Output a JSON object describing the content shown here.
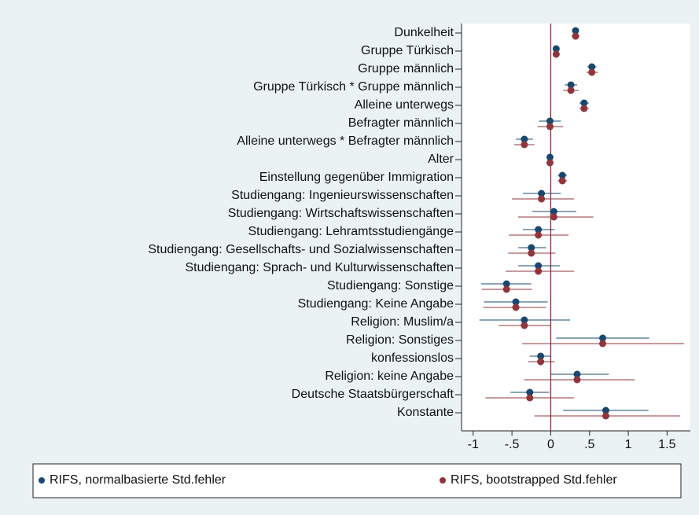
{
  "chart_data": {
    "type": "coefplot",
    "categories": [
      "Dunkelheit",
      "Gruppe Türkisch",
      "Gruppe männlich",
      "Gruppe Türkisch * Gruppe männlich",
      "Alleine unterwegs",
      "Befragter männlich",
      "Alleine unterwegs * Befragter männlich",
      "Alter",
      "Einstellung gegenüber Immigration",
      "Studiengang: Ingenieurswissenschaften",
      "Studiengang: Wirtschaftswissenschaften",
      "Studiengang: Lehramtsstudiengänge",
      "Studiengang: Gesellschafts- und Sozialwissenschaften",
      "Studiengang: Sprach- und Kulturwissenschaften",
      "Studiengang: Sonstige",
      "Studiengang: Keine Angabe",
      "Religion: Muslim/a",
      "Religion: Sonstiges",
      "konfessionslos",
      "Religion: keine Angabe",
      "Deutsche Staatsbürgerschaft",
      "Konstante"
    ],
    "series": [
      {
        "name": "RIFS, normalbasierte Std.fehler",
        "color": "#1a476f",
        "values": [
          0.32,
          0.07,
          0.53,
          0.26,
          0.43,
          -0.01,
          -0.34,
          -0.01,
          0.15,
          -0.12,
          0.04,
          -0.16,
          -0.25,
          -0.16,
          -0.57,
          -0.45,
          -0.34,
          0.67,
          -0.13,
          0.34,
          -0.27,
          0.71
        ],
        "lower": [
          0.28,
          0.03,
          0.47,
          0.18,
          0.37,
          -0.15,
          -0.45,
          -0.04,
          0.09,
          -0.36,
          -0.24,
          -0.36,
          -0.42,
          -0.42,
          -0.9,
          -0.86,
          -0.92,
          0.07,
          -0.27,
          0.0,
          -0.52,
          0.16
        ],
        "upper": [
          0.36,
          0.11,
          0.59,
          0.34,
          0.49,
          0.13,
          -0.23,
          0.02,
          0.21,
          0.13,
          0.33,
          0.05,
          -0.06,
          0.12,
          -0.25,
          -0.04,
          0.25,
          1.27,
          0.0,
          0.75,
          -0.02,
          1.26
        ]
      },
      {
        "name": "RIFS, bootstrapped Std.fehler",
        "color": "#90353b",
        "values": [
          0.32,
          0.07,
          0.53,
          0.26,
          0.43,
          -0.01,
          -0.34,
          -0.01,
          0.15,
          -0.12,
          0.04,
          -0.16,
          -0.25,
          -0.16,
          -0.57,
          -0.45,
          -0.34,
          0.67,
          -0.13,
          0.34,
          -0.27,
          0.71
        ],
        "lower": [
          0.27,
          0.03,
          0.46,
          0.16,
          0.37,
          -0.17,
          -0.47,
          -0.04,
          0.09,
          -0.5,
          -0.42,
          -0.54,
          -0.55,
          -0.58,
          -0.89,
          -0.87,
          -0.67,
          -0.37,
          -0.29,
          -0.34,
          -0.84,
          -0.21
        ],
        "upper": [
          0.37,
          0.11,
          0.61,
          0.36,
          0.49,
          0.16,
          -0.21,
          0.02,
          0.21,
          0.3,
          0.55,
          0.23,
          0.06,
          0.3,
          -0.24,
          -0.06,
          0.0,
          1.72,
          0.05,
          1.08,
          0.3,
          1.67
        ]
      }
    ],
    "xlim": [
      -1.15,
      1.8
    ],
    "xticks": [
      -1,
      {
        "value": -0.5,
        "label": "-.5"
      },
      0,
      {
        "value": 0.5,
        "label": ".5"
      },
      1,
      1.5
    ],
    "reference_line": 0,
    "reference_color": "#a3203a"
  }
}
